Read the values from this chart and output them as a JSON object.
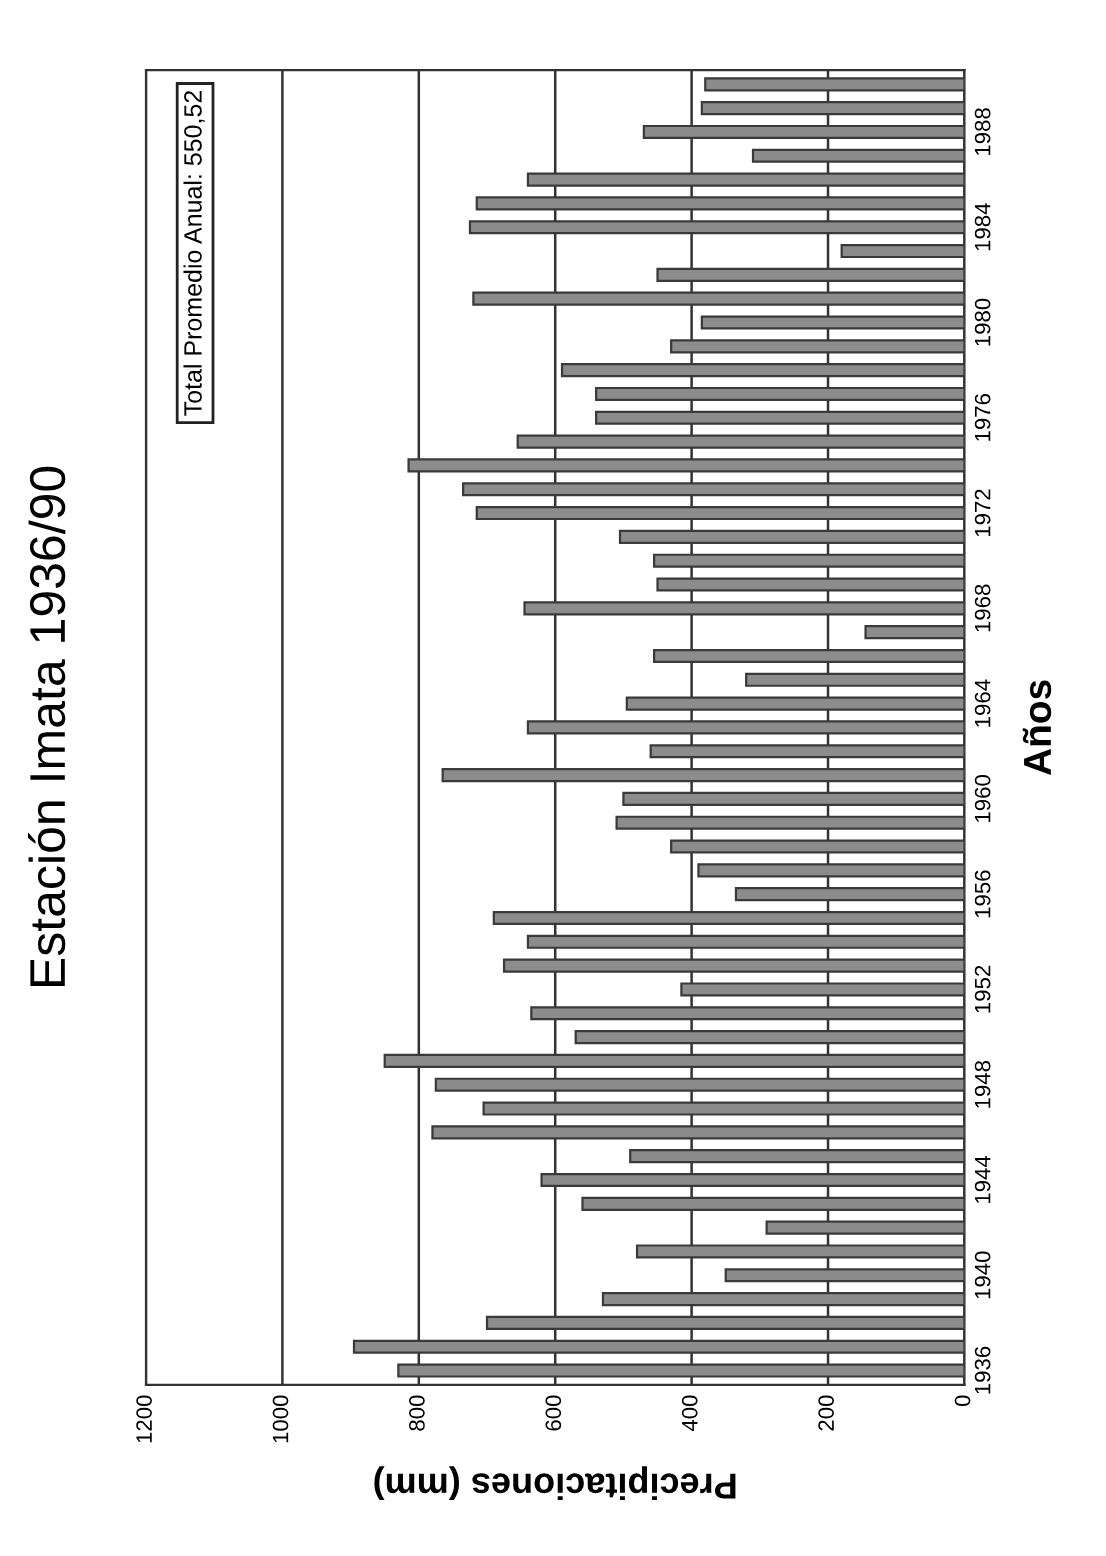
{
  "chart_data": {
    "type": "bar",
    "orientation": "horizontal",
    "title": "Estación Imata 1936/90",
    "xlabel": "Precipitaciones (mm)",
    "ylabel": "Años",
    "annotations": [
      "Total Promedio Anual: 550,52"
    ],
    "categories": [
      null,
      null,
      "1988",
      null,
      null,
      null,
      "1984",
      null,
      null,
      null,
      "1980",
      null,
      null,
      null,
      "1976",
      null,
      null,
      null,
      "1972",
      null,
      null,
      null,
      "1968",
      null,
      null,
      null,
      "1964",
      null,
      null,
      null,
      "1960",
      null,
      null,
      null,
      "1956",
      null,
      null,
      null,
      "1952",
      null,
      null,
      null,
      "1948",
      null,
      null,
      null,
      "1944",
      null,
      null,
      null,
      "1940",
      null,
      null,
      null,
      "1936"
    ],
    "values": [
      380,
      385,
      470,
      310,
      640,
      715,
      725,
      180,
      450,
      720,
      385,
      430,
      590,
      540,
      540,
      655,
      815,
      735,
      715,
      505,
      455,
      450,
      645,
      145,
      455,
      320,
      495,
      640,
      460,
      765,
      500,
      510,
      430,
      390,
      335,
      690,
      640,
      675,
      415,
      635,
      570,
      850,
      775,
      705,
      780,
      490,
      620,
      560,
      290,
      480,
      350,
      530,
      700,
      895,
      830
    ],
    "color": "#8c8c8c",
    "xlim": [
      1200,
      0
    ],
    "xticks": [
      0,
      200,
      400,
      600,
      800,
      1000,
      1200
    ],
    "grid": "x"
  }
}
